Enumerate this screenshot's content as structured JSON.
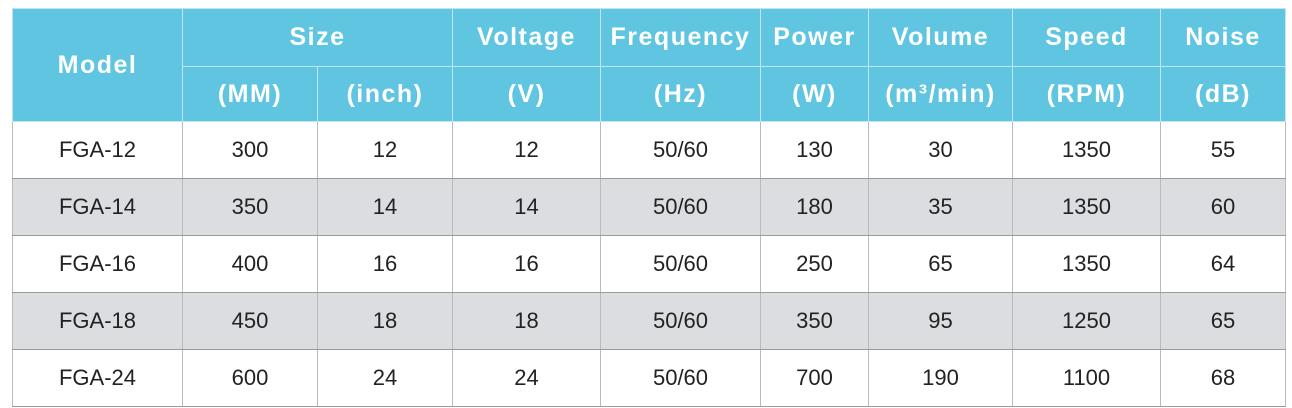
{
  "table": {
    "header_top": [
      "Model",
      "Size",
      "Voltage",
      "Frequency",
      "Power",
      "Volume",
      "Speed",
      "Noise"
    ],
    "header_units": [
      "(MM)",
      "(inch)",
      "(V)",
      "(Hz)",
      "(W)",
      "(m³/min)",
      "(RPM)",
      "(dB)"
    ],
    "rows": [
      [
        "FGA-12",
        "300",
        "12",
        "12",
        "50/60",
        "130",
        "30",
        "1350",
        "55"
      ],
      [
        "FGA-14",
        "350",
        "14",
        "14",
        "50/60",
        "180",
        "35",
        "1350",
        "60"
      ],
      [
        "FGA-16",
        "400",
        "16",
        "16",
        "50/60",
        "250",
        "65",
        "1350",
        "64"
      ],
      [
        "FGA-18",
        "450",
        "18",
        "18",
        "50/60",
        "350",
        "95",
        "1250",
        "65"
      ],
      [
        "FGA-24",
        "600",
        "24",
        "24",
        "50/60",
        "700",
        "190",
        "1100",
        "68"
      ]
    ]
  }
}
